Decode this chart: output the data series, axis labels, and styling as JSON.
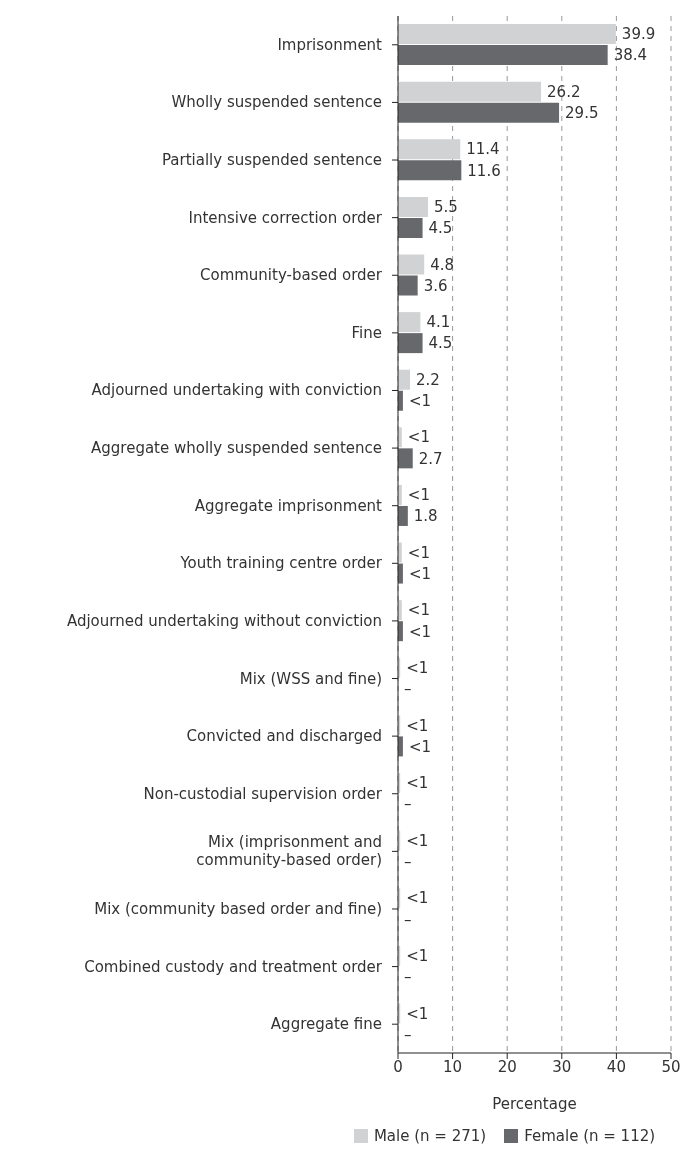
{
  "chart_data": {
    "type": "bar",
    "orientation": "horizontal",
    "xlabel": "Percentage",
    "categories": [
      "Imprisonment",
      "Wholly suspended sentence",
      "Partially suspended sentence",
      "Intensive correction order",
      "Community-based order",
      "Fine",
      "Adjourned undertaking with conviction",
      "Aggregate wholly suspended sentence",
      "Aggregate imprisonment",
      "Youth training centre order",
      "Adjourned undertaking without conviction",
      "Mix (WSS and fine)",
      "Convicted and discharged",
      "Non-custodial supervision order",
      "Mix (imprisonment and community-based order)",
      "Mix (community based order and fine)",
      "Combined custody and treatment order",
      "Aggregate fine"
    ],
    "series": [
      {
        "name": "Male (n = 271)",
        "color": "#d1d2d4",
        "values": [
          39.9,
          26.2,
          11.4,
          5.5,
          4.8,
          4.1,
          2.2,
          0.7,
          0.7,
          0.7,
          0.7,
          0.4,
          0.4,
          0.4,
          0.4,
          0.4,
          0.4,
          0.4
        ],
        "value_labels": [
          "39.9",
          "26.2",
          "11.4",
          "5.5",
          "4.8",
          "4.1",
          "2.2",
          "<1",
          "<1",
          "<1",
          "<1",
          "<1",
          "<1",
          "<1",
          "<1",
          "<1",
          "<1",
          "<1"
        ]
      },
      {
        "name": "Female (n = 112)",
        "color": "#67686c",
        "values": [
          38.4,
          29.5,
          11.6,
          4.5,
          3.6,
          4.5,
          0.9,
          2.7,
          1.8,
          0.9,
          0.9,
          0,
          0.9,
          0,
          0,
          0,
          0,
          0
        ],
        "value_labels": [
          "38.4",
          "29.5",
          "11.6",
          "4.5",
          "3.6",
          "4.5",
          "<1",
          "2.7",
          "1.8",
          "<1",
          "<1",
          "–",
          "<1",
          "–",
          "–",
          "–",
          "–",
          "–"
        ]
      }
    ],
    "xlim": [
      0,
      50
    ],
    "xticks": [
      0,
      10,
      20,
      30,
      40,
      50
    ],
    "grid": "x",
    "legend": "bottom"
  }
}
